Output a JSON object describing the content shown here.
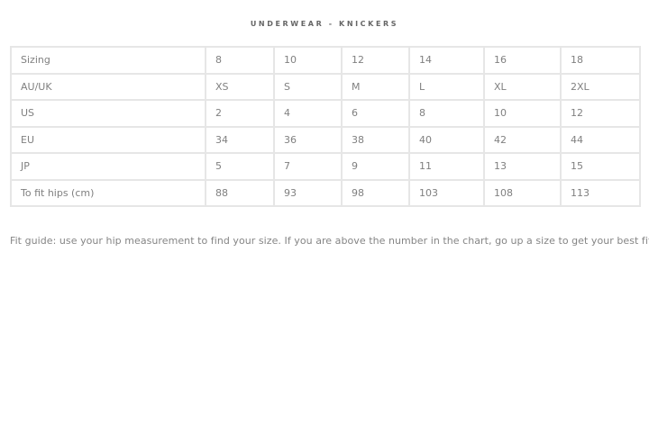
{
  "title": "UNDERWEAR - KNICKERS",
  "table": {
    "rows": [
      [
        "Sizing",
        "8",
        "10",
        "12",
        "14",
        "16",
        "18"
      ],
      [
        "AU/UK",
        "XS",
        "S",
        "M",
        "L",
        "XL",
        "2XL"
      ],
      [
        "US",
        "2",
        "4",
        "6",
        "8",
        "10",
        "12"
      ],
      [
        "EU",
        "34",
        "36",
        "38",
        "40",
        "42",
        "44"
      ],
      [
        "JP",
        "5",
        "7",
        "9",
        "11",
        "13",
        "15"
      ],
      [
        "To fit hips (cm)",
        "88",
        "93",
        "98",
        "103",
        "108",
        "113"
      ]
    ]
  },
  "fit_guide": "Fit guide: use your hip measurement to find your size. If you are above the number in the chart, go up a size to get your best fit."
}
